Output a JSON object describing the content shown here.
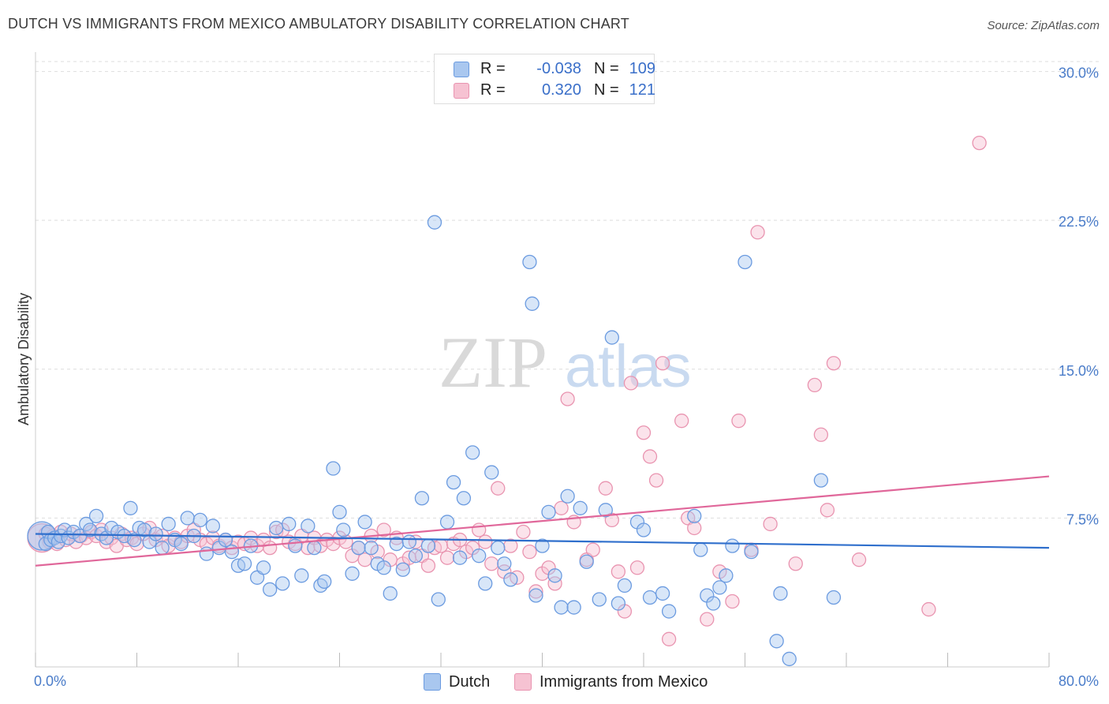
{
  "title": "DUTCH VS IMMIGRANTS FROM MEXICO AMBULATORY DISABILITY CORRELATION CHART",
  "source": "Source: ZipAtlas.com",
  "colors": {
    "dutch_fill": "#a9c7ef",
    "dutch_stroke": "#6b9be0",
    "dutch_line": "#2f6fcc",
    "mexico_fill": "#f6c2d2",
    "mexico_stroke": "#e994b0",
    "mexico_line": "#e0679a",
    "tick_text": "#4a7cc9",
    "grid": "#dddddd"
  },
  "legend": {
    "rows": [
      {
        "r_label": "R =",
        "r_value": "-0.038",
        "n_label": "N =",
        "n_value": "109"
      },
      {
        "r_label": "R =",
        "r_value": "0.320",
        "n_label": "N =",
        "n_value": "121"
      }
    ]
  },
  "bottom_legend": [
    "Dutch",
    "Immigrants from Mexico"
  ],
  "chart_data": {
    "type": "scatter",
    "title": "DUTCH VS IMMIGRANTS FROM MEXICO AMBULATORY DISABILITY CORRELATION CHART",
    "xlabel": "",
    "ylabel": "Ambulatory Disability",
    "xlim": [
      0,
      80
    ],
    "ylim": [
      0,
      30.5
    ],
    "x_tick_labels": [
      "0.0%",
      "80.0%"
    ],
    "y_ticks": [
      7.5,
      15.0,
      22.5,
      30.0
    ],
    "y_tick_labels": [
      "7.5%",
      "15.0%",
      "22.5%",
      "30.0%"
    ],
    "grid": "horizontal dashed",
    "legend_position": "top-center",
    "series": [
      {
        "name": "Dutch",
        "r": -0.038,
        "n": 109,
        "trend": [
          [
            0,
            6.7
          ],
          [
            80,
            6.0
          ]
        ],
        "points": [
          [
            0.5,
            6.6
          ],
          [
            0.8,
            6.2
          ],
          [
            1.0,
            6.8
          ],
          [
            1.2,
            6.4
          ],
          [
            1.5,
            6.5
          ],
          [
            1.8,
            6.3
          ],
          [
            2.0,
            6.6
          ],
          [
            2.3,
            6.9
          ],
          [
            2.6,
            6.5
          ],
          [
            3.0,
            6.8
          ],
          [
            3.5,
            6.6
          ],
          [
            4.0,
            7.2
          ],
          [
            4.3,
            6.9
          ],
          [
            4.8,
            7.6
          ],
          [
            5.2,
            6.7
          ],
          [
            5.6,
            6.5
          ],
          [
            6.0,
            7.0
          ],
          [
            6.5,
            6.8
          ],
          [
            7.0,
            6.6
          ],
          [
            7.5,
            8.0
          ],
          [
            7.8,
            6.4
          ],
          [
            8.2,
            7.0
          ],
          [
            8.6,
            6.9
          ],
          [
            9.0,
            6.3
          ],
          [
            9.5,
            6.7
          ],
          [
            10.0,
            6.0
          ],
          [
            10.5,
            7.2
          ],
          [
            11.0,
            6.4
          ],
          [
            11.5,
            6.2
          ],
          [
            12.0,
            7.5
          ],
          [
            12.5,
            6.6
          ],
          [
            13.0,
            7.4
          ],
          [
            13.5,
            5.7
          ],
          [
            14.0,
            7.1
          ],
          [
            14.5,
            6.0
          ],
          [
            15.0,
            6.4
          ],
          [
            15.5,
            5.8
          ],
          [
            16.0,
            5.1
          ],
          [
            16.5,
            5.2
          ],
          [
            17.0,
            6.1
          ],
          [
            17.5,
            4.5
          ],
          [
            18.0,
            5.0
          ],
          [
            18.5,
            3.9
          ],
          [
            19.0,
            7.0
          ],
          [
            19.5,
            4.2
          ],
          [
            20.0,
            7.2
          ],
          [
            20.5,
            6.1
          ],
          [
            21.0,
            4.6
          ],
          [
            21.5,
            7.1
          ],
          [
            22.0,
            6.0
          ],
          [
            22.5,
            4.1
          ],
          [
            22.8,
            4.3
          ],
          [
            23.5,
            10.0
          ],
          [
            24.0,
            7.8
          ],
          [
            24.3,
            6.9
          ],
          [
            25.0,
            4.7
          ],
          [
            25.5,
            6.0
          ],
          [
            26.0,
            7.3
          ],
          [
            26.5,
            6.0
          ],
          [
            27.0,
            5.2
          ],
          [
            27.5,
            5.0
          ],
          [
            28.0,
            3.7
          ],
          [
            28.5,
            6.2
          ],
          [
            29.0,
            4.9
          ],
          [
            29.5,
            6.3
          ],
          [
            30.0,
            5.6
          ],
          [
            30.5,
            8.5
          ],
          [
            31.0,
            6.1
          ],
          [
            31.5,
            22.4
          ],
          [
            31.8,
            3.4
          ],
          [
            32.5,
            7.3
          ],
          [
            33.0,
            9.3
          ],
          [
            33.5,
            5.5
          ],
          [
            33.8,
            8.5
          ],
          [
            34.5,
            10.8
          ],
          [
            35.0,
            5.6
          ],
          [
            35.5,
            4.2
          ],
          [
            36.0,
            9.8
          ],
          [
            36.5,
            6.0
          ],
          [
            37.0,
            5.2
          ],
          [
            37.5,
            4.4
          ],
          [
            39.0,
            20.4
          ],
          [
            39.2,
            18.3
          ],
          [
            39.5,
            3.6
          ],
          [
            40.0,
            6.1
          ],
          [
            40.5,
            7.8
          ],
          [
            41.0,
            4.6
          ],
          [
            41.5,
            3.0
          ],
          [
            42.0,
            8.6
          ],
          [
            42.5,
            3.0
          ],
          [
            43.0,
            8.0
          ],
          [
            43.5,
            5.3
          ],
          [
            44.5,
            3.4
          ],
          [
            45.0,
            7.9
          ],
          [
            45.5,
            16.6
          ],
          [
            46.0,
            3.2
          ],
          [
            46.5,
            4.1
          ],
          [
            47.5,
            7.3
          ],
          [
            48.0,
            6.9
          ],
          [
            48.5,
            3.5
          ],
          [
            49.5,
            3.7
          ],
          [
            50.0,
            2.8
          ],
          [
            52.0,
            7.6
          ],
          [
            52.5,
            5.9
          ],
          [
            53.0,
            3.6
          ],
          [
            53.5,
            3.2
          ],
          [
            54.0,
            4.0
          ],
          [
            54.5,
            4.6
          ],
          [
            55.0,
            6.1
          ],
          [
            56.0,
            20.4
          ],
          [
            56.5,
            5.8
          ],
          [
            58.5,
            1.3
          ],
          [
            58.8,
            3.7
          ],
          [
            59.5,
            0.4
          ],
          [
            62.0,
            9.4
          ],
          [
            63.0,
            3.5
          ]
        ]
      },
      {
        "name": "Immigrants from Mexico",
        "r": 0.32,
        "n": 121,
        "trend": [
          [
            0,
            5.1
          ],
          [
            80,
            9.6
          ]
        ],
        "points": [
          [
            0.5,
            6.5
          ],
          [
            0.8,
            6.7
          ],
          [
            1.1,
            6.3
          ],
          [
            1.4,
            6.6
          ],
          [
            1.7,
            6.2
          ],
          [
            2.0,
            6.8
          ],
          [
            2.4,
            6.4
          ],
          [
            2.8,
            6.7
          ],
          [
            3.2,
            6.3
          ],
          [
            3.6,
            6.6
          ],
          [
            4.0,
            6.5
          ],
          [
            4.4,
            6.8
          ],
          [
            4.8,
            6.6
          ],
          [
            5.2,
            6.9
          ],
          [
            5.6,
            6.3
          ],
          [
            6.0,
            6.5
          ],
          [
            6.4,
            6.1
          ],
          [
            6.8,
            6.7
          ],
          [
            7.2,
            6.4
          ],
          [
            7.6,
            6.5
          ],
          [
            8.0,
            6.2
          ],
          [
            8.5,
            6.7
          ],
          [
            9.0,
            7.0
          ],
          [
            9.5,
            6.4
          ],
          [
            10.0,
            6.6
          ],
          [
            10.5,
            6.1
          ],
          [
            11.0,
            6.5
          ],
          [
            11.5,
            6.3
          ],
          [
            12.0,
            6.6
          ],
          [
            12.5,
            6.9
          ],
          [
            13.0,
            6.4
          ],
          [
            13.5,
            6.2
          ],
          [
            14.0,
            6.5
          ],
          [
            14.5,
            6.1
          ],
          [
            15.0,
            6.4
          ],
          [
            15.5,
            6.0
          ],
          [
            16.0,
            6.3
          ],
          [
            16.5,
            6.2
          ],
          [
            17.0,
            6.5
          ],
          [
            17.5,
            6.1
          ],
          [
            18.0,
            6.4
          ],
          [
            18.5,
            6.0
          ],
          [
            19.0,
            6.8
          ],
          [
            19.5,
            6.9
          ],
          [
            20.0,
            6.3
          ],
          [
            20.5,
            6.2
          ],
          [
            21.0,
            6.6
          ],
          [
            21.5,
            6.0
          ],
          [
            22.0,
            6.5
          ],
          [
            22.5,
            6.1
          ],
          [
            23.0,
            6.4
          ],
          [
            23.5,
            6.2
          ],
          [
            24.0,
            6.5
          ],
          [
            24.5,
            6.3
          ],
          [
            25.0,
            5.6
          ],
          [
            25.5,
            6.0
          ],
          [
            26.0,
            5.4
          ],
          [
            26.5,
            6.6
          ],
          [
            27.0,
            5.8
          ],
          [
            27.5,
            6.9
          ],
          [
            28.0,
            5.4
          ],
          [
            28.5,
            6.5
          ],
          [
            29.0,
            5.2
          ],
          [
            29.5,
            5.5
          ],
          [
            30.0,
            6.3
          ],
          [
            30.5,
            5.6
          ],
          [
            31.0,
            5.1
          ],
          [
            31.5,
            6.0
          ],
          [
            32.0,
            6.1
          ],
          [
            32.5,
            5.5
          ],
          [
            33.0,
            6.2
          ],
          [
            33.5,
            6.4
          ],
          [
            34.0,
            5.8
          ],
          [
            34.5,
            6.0
          ],
          [
            35.0,
            6.9
          ],
          [
            35.5,
            6.3
          ],
          [
            36.0,
            5.2
          ],
          [
            36.5,
            9.0
          ],
          [
            37.0,
            4.8
          ],
          [
            37.5,
            6.1
          ],
          [
            38.0,
            4.5
          ],
          [
            38.5,
            6.8
          ],
          [
            39.0,
            5.8
          ],
          [
            39.5,
            3.8
          ],
          [
            40.0,
            4.7
          ],
          [
            40.5,
            5.0
          ],
          [
            41.0,
            4.2
          ],
          [
            41.5,
            8.0
          ],
          [
            42.0,
            13.5
          ],
          [
            42.5,
            7.3
          ],
          [
            43.5,
            5.4
          ],
          [
            44.0,
            5.9
          ],
          [
            45.0,
            9.0
          ],
          [
            45.5,
            7.4
          ],
          [
            46.0,
            4.8
          ],
          [
            46.5,
            2.8
          ],
          [
            47.0,
            14.3
          ],
          [
            47.5,
            5.0
          ],
          [
            48.0,
            11.8
          ],
          [
            48.5,
            10.6
          ],
          [
            49.0,
            9.4
          ],
          [
            49.5,
            15.3
          ],
          [
            50.0,
            1.4
          ],
          [
            51.0,
            12.4
          ],
          [
            51.5,
            7.5
          ],
          [
            52.0,
            7.0
          ],
          [
            53.0,
            2.4
          ],
          [
            54.0,
            4.8
          ],
          [
            55.0,
            3.3
          ],
          [
            55.5,
            12.4
          ],
          [
            56.5,
            5.9
          ],
          [
            57.0,
            21.9
          ],
          [
            58.0,
            7.2
          ],
          [
            60.0,
            5.2
          ],
          [
            61.5,
            14.2
          ],
          [
            62.0,
            11.7
          ],
          [
            62.5,
            7.9
          ],
          [
            63.0,
            15.3
          ],
          [
            65.0,
            5.4
          ],
          [
            70.5,
            2.9
          ],
          [
            74.5,
            26.4
          ]
        ]
      }
    ]
  },
  "watermark": {
    "part1": "ZIP",
    "part2": "atlas"
  }
}
